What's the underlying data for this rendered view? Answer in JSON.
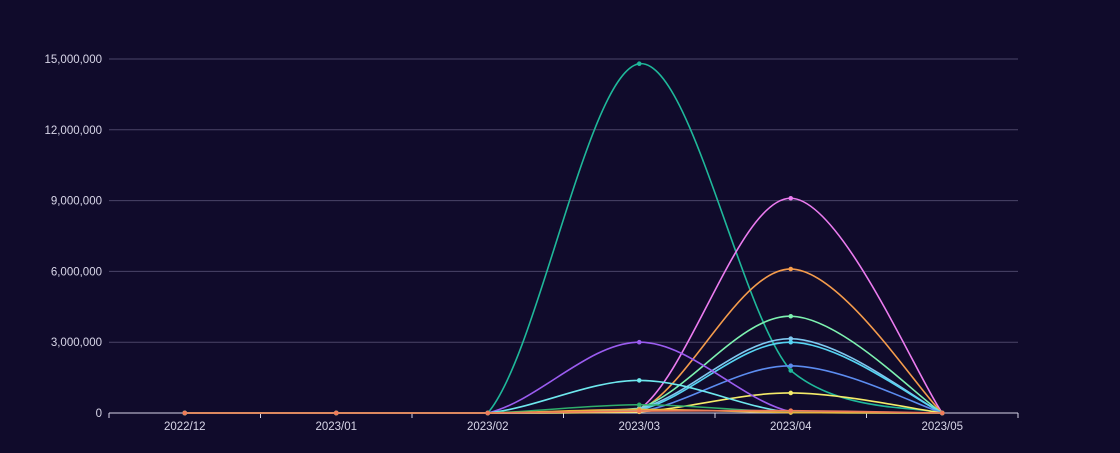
{
  "chart_data": {
    "type": "line",
    "smooth": true,
    "categories": [
      "2022/12",
      "2023/01",
      "2023/02",
      "2023/03",
      "2023/04",
      "2023/05"
    ],
    "ylim": [
      0,
      15000000
    ],
    "yticks": [
      0,
      3000000,
      6000000,
      9000000,
      12000000,
      15000000
    ],
    "ytick_labels": [
      "0",
      "3,000,000",
      "6,000,000",
      "9,000,000",
      "12,000,000",
      "15,000,000"
    ],
    "grid": true,
    "legend": "none",
    "series": [
      {
        "color": "#1fb89a",
        "values": [
          0,
          0,
          0,
          14800000,
          1800000,
          0
        ]
      },
      {
        "color": "#ec7cf0",
        "values": [
          0,
          0,
          0,
          150000,
          9100000,
          0
        ]
      },
      {
        "color": "#f59c4c",
        "values": [
          0,
          0,
          0,
          100000,
          6100000,
          0
        ]
      },
      {
        "color": "#7df2b0",
        "values": [
          0,
          0,
          0,
          200000,
          4100000,
          0
        ]
      },
      {
        "color": "#7fc8f0",
        "values": [
          0,
          0,
          0,
          180000,
          3150000,
          0
        ]
      },
      {
        "color": "#56d4f2",
        "values": [
          0,
          0,
          0,
          120000,
          3000000,
          0
        ]
      },
      {
        "color": "#5c8cf0",
        "values": [
          0,
          0,
          0,
          60000,
          2000000,
          0
        ]
      },
      {
        "color": "#f5ec6a",
        "values": [
          0,
          0,
          0,
          50000,
          850000,
          0
        ]
      },
      {
        "color": "#9b5cf0",
        "values": [
          0,
          0,
          0,
          3000000,
          50000,
          0
        ]
      },
      {
        "color": "#6ee8ee",
        "values": [
          0,
          0,
          0,
          1380000,
          20000,
          0
        ]
      },
      {
        "color": "#2fae6a",
        "values": [
          0,
          0,
          0,
          350000,
          30000,
          0
        ]
      },
      {
        "color": "#e8b23c",
        "values": [
          0,
          0,
          0,
          150000,
          20000,
          0
        ]
      },
      {
        "color": "#ef7a5a",
        "values": [
          0,
          0,
          0,
          80000,
          100000,
          0
        ]
      }
    ]
  }
}
